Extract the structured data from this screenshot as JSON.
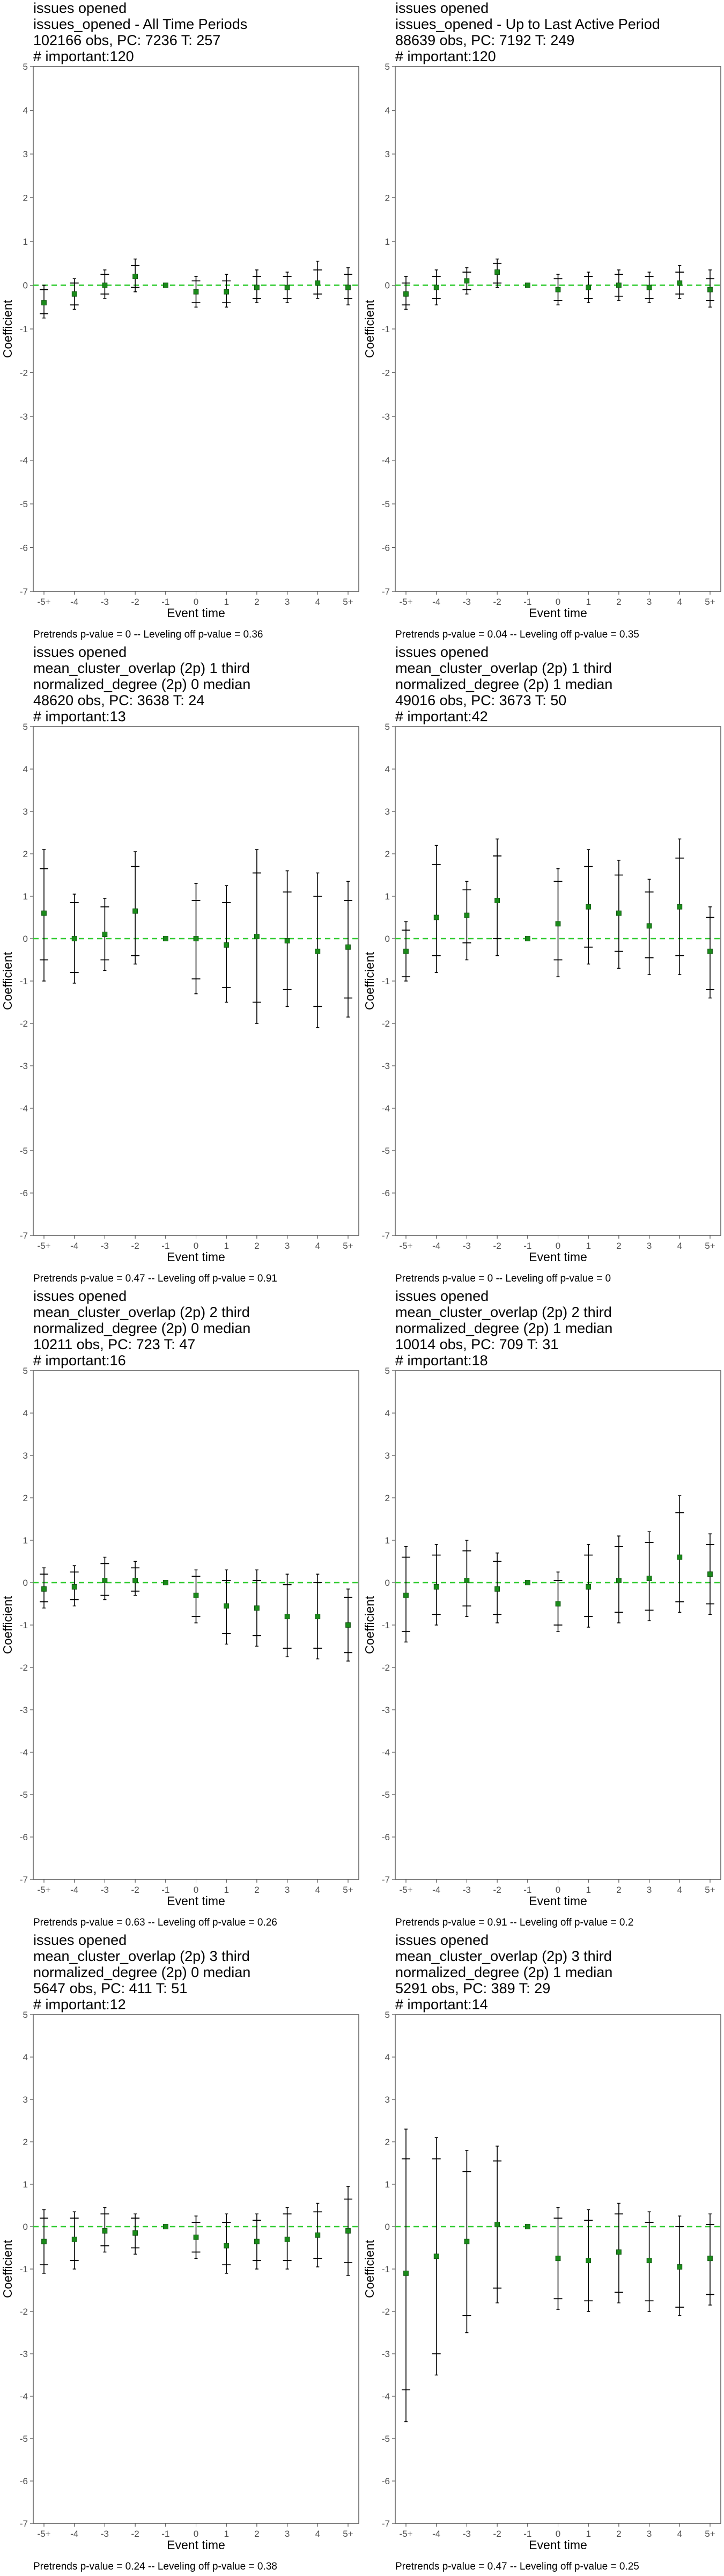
{
  "chart_data": [
    {
      "type": "scatter",
      "title_lines": [
        "issues opened",
        "issues_opened - All Time Periods",
        "102166 obs, PC: 7236 T: 257",
        "# important:120"
      ],
      "xlabel": "Event time",
      "ylabel": "Coefficient",
      "categories": [
        "-5+",
        "-4",
        "-3",
        "-2",
        "-1",
        "0",
        "1",
        "2",
        "3",
        "4",
        "5+"
      ],
      "ylim": [
        -7,
        5
      ],
      "yticks": [
        5,
        4,
        3,
        2,
        1,
        0,
        -1,
        -2,
        -3,
        -4,
        -5,
        -6,
        -7
      ],
      "reference_line": 0,
      "estimates": [
        -0.4,
        -0.2,
        0.0,
        0.2,
        0.0,
        -0.15,
        -0.15,
        -0.05,
        -0.05,
        0.05,
        -0.05
      ],
      "ci_inner": [
        [
          -0.65,
          -0.1
        ],
        [
          -0.45,
          0.05
        ],
        [
          -0.2,
          0.25
        ],
        [
          -0.05,
          0.45
        ],
        [
          0.0,
          0.0
        ],
        [
          -0.4,
          0.1
        ],
        [
          -0.4,
          0.1
        ],
        [
          -0.3,
          0.2
        ],
        [
          -0.3,
          0.2
        ],
        [
          -0.2,
          0.35
        ],
        [
          -0.3,
          0.25
        ]
      ],
      "ci_outer": [
        [
          -0.75,
          0.0
        ],
        [
          -0.55,
          0.15
        ],
        [
          -0.3,
          0.35
        ],
        [
          -0.15,
          0.6
        ],
        [
          0.0,
          0.0
        ],
        [
          -0.5,
          0.2
        ],
        [
          -0.5,
          0.25
        ],
        [
          -0.4,
          0.35
        ],
        [
          -0.4,
          0.3
        ],
        [
          -0.3,
          0.55
        ],
        [
          -0.45,
          0.4
        ]
      ],
      "note": "Pretrends p-value = 0 -- Leveling off p-value = 0.36",
      "colors": {
        "point": "#1a8a1a",
        "reference": "#33cc33",
        "bar": "#000000"
      }
    },
    {
      "type": "scatter",
      "title_lines": [
        "issues opened",
        "issues_opened - Up to Last Active Period",
        "88639 obs, PC: 7192 T: 249",
        "# important:120"
      ],
      "xlabel": "Event time",
      "ylabel": "Coefficient",
      "categories": [
        "-5+",
        "-4",
        "-3",
        "-2",
        "-1",
        "0",
        "1",
        "2",
        "3",
        "4",
        "5+"
      ],
      "ylim": [
        -7,
        5
      ],
      "yticks": [
        5,
        4,
        3,
        2,
        1,
        0,
        -1,
        -2,
        -3,
        -4,
        -5,
        -6,
        -7
      ],
      "reference_line": 0,
      "estimates": [
        -0.2,
        -0.05,
        0.1,
        0.3,
        0.0,
        -0.1,
        -0.05,
        0.0,
        -0.05,
        0.05,
        -0.1
      ],
      "ci_inner": [
        [
          -0.45,
          0.05
        ],
        [
          -0.3,
          0.2
        ],
        [
          -0.1,
          0.3
        ],
        [
          0.05,
          0.5
        ],
        [
          0.0,
          0.0
        ],
        [
          -0.35,
          0.15
        ],
        [
          -0.3,
          0.2
        ],
        [
          -0.25,
          0.25
        ],
        [
          -0.3,
          0.2
        ],
        [
          -0.2,
          0.3
        ],
        [
          -0.35,
          0.15
        ]
      ],
      "ci_outer": [
        [
          -0.55,
          0.2
        ],
        [
          -0.45,
          0.35
        ],
        [
          -0.2,
          0.4
        ],
        [
          -0.05,
          0.6
        ],
        [
          0.0,
          0.0
        ],
        [
          -0.45,
          0.25
        ],
        [
          -0.4,
          0.3
        ],
        [
          -0.35,
          0.35
        ],
        [
          -0.4,
          0.3
        ],
        [
          -0.3,
          0.45
        ],
        [
          -0.5,
          0.35
        ]
      ],
      "note": "Pretrends p-value = 0.04 -- Leveling off p-value = 0.35",
      "colors": {
        "point": "#1a8a1a",
        "reference": "#33cc33",
        "bar": "#000000"
      }
    },
    {
      "type": "scatter",
      "title_lines": [
        "issues opened",
        "mean_cluster_overlap (2p) 1 third",
        "normalized_degree (2p) 0 median",
        "48620 obs, PC: 3638 T: 24",
        "# important:13"
      ],
      "xlabel": "Event time",
      "ylabel": "Coefficient",
      "categories": [
        "-5+",
        "-4",
        "-3",
        "-2",
        "-1",
        "0",
        "1",
        "2",
        "3",
        "4",
        "5+"
      ],
      "ylim": [
        -7,
        5
      ],
      "yticks": [
        5,
        4,
        3,
        2,
        1,
        0,
        -1,
        -2,
        -3,
        -4,
        -5,
        -6,
        -7
      ],
      "reference_line": 0,
      "estimates": [
        0.6,
        0.0,
        0.1,
        0.65,
        0.0,
        0.0,
        -0.15,
        0.05,
        -0.05,
        -0.3,
        -0.2
      ],
      "ci_inner": [
        [
          -0.5,
          1.65
        ],
        [
          -0.8,
          0.85
        ],
        [
          -0.5,
          0.75
        ],
        [
          -0.4,
          1.7
        ],
        [
          0.0,
          0.0
        ],
        [
          -0.95,
          0.9
        ],
        [
          -1.15,
          0.85
        ],
        [
          -1.5,
          1.55
        ],
        [
          -1.2,
          1.1
        ],
        [
          -1.6,
          1.0
        ],
        [
          -1.4,
          0.9
        ]
      ],
      "ci_outer": [
        [
          -1.0,
          2.1
        ],
        [
          -1.05,
          1.05
        ],
        [
          -0.75,
          0.95
        ],
        [
          -0.6,
          2.05
        ],
        [
          0.0,
          0.0
        ],
        [
          -1.3,
          1.3
        ],
        [
          -1.5,
          1.25
        ],
        [
          -2.0,
          2.1
        ],
        [
          -1.6,
          1.6
        ],
        [
          -2.1,
          1.55
        ],
        [
          -1.85,
          1.35
        ]
      ],
      "note": "Pretrends p-value = 0.47 -- Leveling off p-value = 0.91",
      "colors": {
        "point": "#1a8a1a",
        "reference": "#33cc33",
        "bar": "#000000"
      }
    },
    {
      "type": "scatter",
      "title_lines": [
        "issues opened",
        "mean_cluster_overlap (2p) 1 third",
        "normalized_degree (2p) 1 median",
        "49016 obs, PC: 3673 T: 50",
        "# important:42"
      ],
      "xlabel": "Event time",
      "ylabel": "Coefficient",
      "categories": [
        "-5+",
        "-4",
        "-3",
        "-2",
        "-1",
        "0",
        "1",
        "2",
        "3",
        "4",
        "5+"
      ],
      "ylim": [
        -7,
        5
      ],
      "yticks": [
        5,
        4,
        3,
        2,
        1,
        0,
        -1,
        -2,
        -3,
        -4,
        -5,
        -6,
        -7
      ],
      "reference_line": 0,
      "estimates": [
        -0.3,
        0.5,
        0.55,
        0.9,
        0.0,
        0.35,
        0.75,
        0.6,
        0.3,
        0.75,
        -0.3
      ],
      "ci_inner": [
        [
          -0.9,
          0.2
        ],
        [
          -0.4,
          1.75
        ],
        [
          -0.1,
          1.15
        ],
        [
          0.0,
          1.95
        ],
        [
          0.0,
          0.0
        ],
        [
          -0.5,
          1.35
        ],
        [
          -0.2,
          1.7
        ],
        [
          -0.3,
          1.5
        ],
        [
          -0.45,
          1.1
        ],
        [
          -0.4,
          1.9
        ],
        [
          -1.2,
          0.5
        ]
      ],
      "ci_outer": [
        [
          -1.0,
          0.4
        ],
        [
          -0.8,
          2.2
        ],
        [
          -0.5,
          1.35
        ],
        [
          -0.4,
          2.35
        ],
        [
          0.0,
          0.0
        ],
        [
          -0.9,
          1.65
        ],
        [
          -0.6,
          2.1
        ],
        [
          -0.7,
          1.85
        ],
        [
          -0.85,
          1.4
        ],
        [
          -0.85,
          2.35
        ],
        [
          -1.4,
          0.75
        ]
      ],
      "note": "Pretrends p-value = 0 -- Leveling off p-value = 0",
      "colors": {
        "point": "#1a8a1a",
        "reference": "#33cc33",
        "bar": "#000000"
      }
    },
    {
      "type": "scatter",
      "title_lines": [
        "issues opened",
        "mean_cluster_overlap (2p) 2 third",
        "normalized_degree (2p) 0 median",
        "10211 obs, PC: 723 T: 47",
        "# important:16"
      ],
      "xlabel": "Event time",
      "ylabel": "Coefficient",
      "categories": [
        "-5+",
        "-4",
        "-3",
        "-2",
        "-1",
        "0",
        "1",
        "2",
        "3",
        "4",
        "5+"
      ],
      "ylim": [
        -7,
        5
      ],
      "yticks": [
        5,
        4,
        3,
        2,
        1,
        0,
        -1,
        -2,
        -3,
        -4,
        -5,
        -6,
        -7
      ],
      "reference_line": 0,
      "estimates": [
        -0.15,
        -0.1,
        0.05,
        0.05,
        0.0,
        -0.3,
        -0.55,
        -0.6,
        -0.8,
        -0.8,
        -1.0
      ],
      "ci_inner": [
        [
          -0.45,
          0.2
        ],
        [
          -0.4,
          0.25
        ],
        [
          -0.3,
          0.45
        ],
        [
          -0.2,
          0.35
        ],
        [
          0.0,
          0.0
        ],
        [
          -0.8,
          0.15
        ],
        [
          -1.2,
          0.05
        ],
        [
          -1.25,
          0.05
        ],
        [
          -1.55,
          -0.05
        ],
        [
          -1.55,
          0.0
        ],
        [
          -1.65,
          -0.35
        ]
      ],
      "ci_outer": [
        [
          -0.6,
          0.35
        ],
        [
          -0.55,
          0.4
        ],
        [
          -0.4,
          0.6
        ],
        [
          -0.3,
          0.5
        ],
        [
          0.0,
          0.0
        ],
        [
          -0.95,
          0.3
        ],
        [
          -1.45,
          0.3
        ],
        [
          -1.5,
          0.3
        ],
        [
          -1.75,
          0.2
        ],
        [
          -1.8,
          0.2
        ],
        [
          -1.85,
          -0.15
        ]
      ],
      "note": "Pretrends p-value = 0.63 -- Leveling off p-value = 0.26",
      "colors": {
        "point": "#1a8a1a",
        "reference": "#33cc33",
        "bar": "#000000"
      }
    },
    {
      "type": "scatter",
      "title_lines": [
        "issues opened",
        "mean_cluster_overlap (2p) 2 third",
        "normalized_degree (2p) 1 median",
        "10014 obs, PC: 709 T: 31",
        "# important:18"
      ],
      "xlabel": "Event time",
      "ylabel": "Coefficient",
      "categories": [
        "-5+",
        "-4",
        "-3",
        "-2",
        "-1",
        "0",
        "1",
        "2",
        "3",
        "4",
        "5+"
      ],
      "ylim": [
        -7,
        5
      ],
      "yticks": [
        5,
        4,
        3,
        2,
        1,
        0,
        -1,
        -2,
        -3,
        -4,
        -5,
        -6,
        -7
      ],
      "reference_line": 0,
      "estimates": [
        -0.3,
        -0.1,
        0.05,
        -0.15,
        0.0,
        -0.5,
        -0.1,
        0.05,
        0.1,
        0.6,
        0.2
      ],
      "ci_inner": [
        [
          -1.15,
          0.6
        ],
        [
          -0.75,
          0.65
        ],
        [
          -0.55,
          0.75
        ],
        [
          -0.75,
          0.5
        ],
        [
          0.0,
          0.0
        ],
        [
          -1.0,
          0.05
        ],
        [
          -0.8,
          0.65
        ],
        [
          -0.7,
          0.85
        ],
        [
          -0.65,
          0.95
        ],
        [
          -0.45,
          1.65
        ],
        [
          -0.5,
          0.9
        ]
      ],
      "ci_outer": [
        [
          -1.4,
          0.85
        ],
        [
          -1.0,
          0.9
        ],
        [
          -0.8,
          1.0
        ],
        [
          -0.95,
          0.7
        ],
        [
          0.0,
          0.0
        ],
        [
          -1.15,
          0.25
        ],
        [
          -1.05,
          0.9
        ],
        [
          -0.95,
          1.1
        ],
        [
          -0.9,
          1.2
        ],
        [
          -0.7,
          2.05
        ],
        [
          -0.75,
          1.15
        ]
      ],
      "note": "Pretrends p-value = 0.91 -- Leveling off p-value = 0.2",
      "colors": {
        "point": "#1a8a1a",
        "reference": "#33cc33",
        "bar": "#000000"
      }
    },
    {
      "type": "scatter",
      "title_lines": [
        "issues opened",
        "mean_cluster_overlap (2p) 3 third",
        "normalized_degree (2p) 0 median",
        "5647 obs, PC: 411 T: 51",
        "# important:12"
      ],
      "xlabel": "Event time",
      "ylabel": "Coefficient",
      "categories": [
        "-5+",
        "-4",
        "-3",
        "-2",
        "-1",
        "0",
        "1",
        "2",
        "3",
        "4",
        "5+"
      ],
      "ylim": [
        -7,
        5
      ],
      "yticks": [
        5,
        4,
        3,
        2,
        1,
        0,
        -1,
        -2,
        -3,
        -4,
        -5,
        -6,
        -7
      ],
      "reference_line": 0,
      "estimates": [
        -0.35,
        -0.3,
        -0.1,
        -0.15,
        0.0,
        -0.25,
        -0.45,
        -0.35,
        -0.3,
        -0.2,
        -0.1
      ],
      "ci_inner": [
        [
          -0.9,
          0.2
        ],
        [
          -0.8,
          0.2
        ],
        [
          -0.45,
          0.3
        ],
        [
          -0.5,
          0.2
        ],
        [
          0.0,
          0.0
        ],
        [
          -0.6,
          0.1
        ],
        [
          -0.9,
          0.1
        ],
        [
          -0.8,
          0.15
        ],
        [
          -0.8,
          0.3
        ],
        [
          -0.75,
          0.35
        ],
        [
          -0.85,
          0.65
        ]
      ],
      "ci_outer": [
        [
          -1.1,
          0.4
        ],
        [
          -1.0,
          0.35
        ],
        [
          -0.6,
          0.45
        ],
        [
          -0.65,
          0.3
        ],
        [
          0.0,
          0.0
        ],
        [
          -0.75,
          0.25
        ],
        [
          -1.1,
          0.3
        ],
        [
          -1.0,
          0.3
        ],
        [
          -1.0,
          0.45
        ],
        [
          -0.95,
          0.55
        ],
        [
          -1.15,
          0.95
        ]
      ],
      "note": "Pretrends p-value = 0.24 -- Leveling off p-value = 0.38",
      "colors": {
        "point": "#1a8a1a",
        "reference": "#33cc33",
        "bar": "#000000"
      }
    },
    {
      "type": "scatter",
      "title_lines": [
        "issues opened",
        "mean_cluster_overlap (2p) 3 third",
        "normalized_degree (2p) 1 median",
        "5291 obs, PC: 389 T: 29",
        "# important:14"
      ],
      "xlabel": "Event time",
      "ylabel": "Coefficient",
      "categories": [
        "-5+",
        "-4",
        "-3",
        "-2",
        "-1",
        "0",
        "1",
        "2",
        "3",
        "4",
        "5+"
      ],
      "ylim": [
        -7,
        5
      ],
      "yticks": [
        5,
        4,
        3,
        2,
        1,
        0,
        -1,
        -2,
        -3,
        -4,
        -5,
        -6,
        -7
      ],
      "reference_line": 0,
      "estimates": [
        -1.1,
        -0.7,
        -0.35,
        0.05,
        0.0,
        -0.75,
        -0.8,
        -0.6,
        -0.8,
        -0.95,
        -0.75
      ],
      "ci_inner": [
        [
          -3.85,
          1.6
        ],
        [
          -3.0,
          1.6
        ],
        [
          -2.1,
          1.3
        ],
        [
          -1.45,
          1.55
        ],
        [
          0.0,
          0.0
        ],
        [
          -1.7,
          0.2
        ],
        [
          -1.75,
          0.15
        ],
        [
          -1.55,
          0.3
        ],
        [
          -1.75,
          0.1
        ],
        [
          -1.9,
          0.0
        ],
        [
          -1.6,
          0.05
        ]
      ],
      "ci_outer": [
        [
          -4.6,
          2.3
        ],
        [
          -3.5,
          2.1
        ],
        [
          -2.5,
          1.8
        ],
        [
          -1.8,
          1.9
        ],
        [
          0.0,
          0.0
        ],
        [
          -1.95,
          0.45
        ],
        [
          -2.0,
          0.4
        ],
        [
          -1.8,
          0.55
        ],
        [
          -2.0,
          0.35
        ],
        [
          -2.1,
          0.25
        ],
        [
          -1.85,
          0.3
        ]
      ],
      "note": "Pretrends p-value = 0.47 -- Leveling off p-value = 0.25",
      "colors": {
        "point": "#1a8a1a",
        "reference": "#33cc33",
        "bar": "#000000"
      }
    }
  ]
}
